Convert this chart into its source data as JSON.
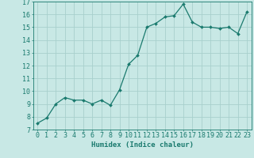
{
  "x": [
    0,
    1,
    2,
    3,
    4,
    5,
    6,
    7,
    8,
    9,
    10,
    11,
    12,
    13,
    14,
    15,
    16,
    17,
    18,
    19,
    20,
    21,
    22,
    23
  ],
  "y": [
    7.5,
    7.9,
    9.0,
    9.5,
    9.3,
    9.3,
    9.0,
    9.3,
    8.9,
    10.1,
    12.1,
    12.8,
    15.0,
    15.3,
    15.8,
    15.9,
    16.8,
    15.4,
    15.0,
    15.0,
    14.9,
    15.0,
    14.5,
    16.2
  ],
  "line_color": "#1a7a6e",
  "marker": "D",
  "marker_size": 2,
  "bg_color": "#c8e8e5",
  "grid_color": "#a8d0cc",
  "xlabel": "Humidex (Indice chaleur)",
  "ylim": [
    7,
    17
  ],
  "xlim": [
    -0.5,
    23.5
  ],
  "yticks": [
    7,
    8,
    9,
    10,
    11,
    12,
    13,
    14,
    15,
    16,
    17
  ],
  "xticks": [
    0,
    1,
    2,
    3,
    4,
    5,
    6,
    7,
    8,
    9,
    10,
    11,
    12,
    13,
    14,
    15,
    16,
    17,
    18,
    19,
    20,
    21,
    22,
    23
  ],
  "xlabel_fontsize": 6.5,
  "tick_fontsize": 6,
  "tick_color": "#1a7a6e",
  "line_width": 0.9
}
